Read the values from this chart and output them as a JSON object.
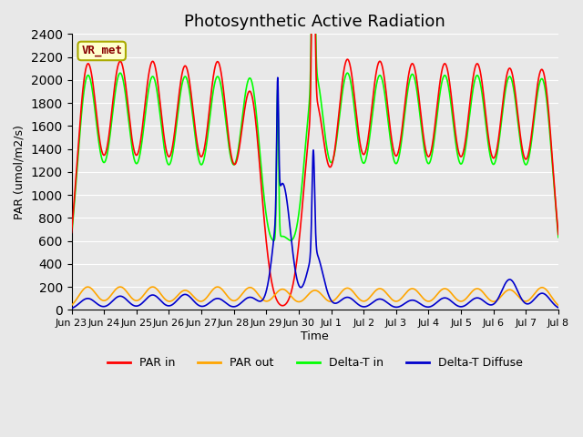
{
  "title": "Photosynthetic Active Radiation",
  "ylabel": "PAR (umol/m2/s)",
  "xlabel": "Time",
  "ylim": [
    0,
    2400
  ],
  "plot_bg_color": "#e8e8e8",
  "annotation_text": "VR_met",
  "annotation_bg": "#ffffcc",
  "annotation_border": "#aaaa00",
  "annotation_text_color": "#880000",
  "legend_items": [
    "PAR in",
    "PAR out",
    "Delta-T in",
    "Delta-T Diffuse"
  ],
  "legend_colors": [
    "#ff0000",
    "#ffa500",
    "#00ff00",
    "#0000cc"
  ],
  "line_colors": {
    "par_in": "#ff0000",
    "par_out": "#ffa500",
    "delta_t_in": "#00ff00",
    "delta_t_diffuse": "#0000cc"
  },
  "tick_labels": [
    "Jun 23",
    "Jun 24",
    "Jun 25",
    "Jun 26",
    "Jun 27",
    "Jun 28",
    "Jun 29",
    "Jun 30",
    "Jul 1",
    "Jul 2",
    "Jul 3",
    "Jul 4",
    "Jul 5",
    "Jul 6",
    "Jul 7",
    "Jul 8"
  ],
  "num_days": 15,
  "grid_color": "#ffffff",
  "title_fontsize": 13,
  "peaks_par_in": [
    2120,
    2120,
    2120,
    2080,
    2120,
    1880,
    0,
    1800,
    2140,
    2120,
    2100,
    2100,
    2100,
    2060,
    2070
  ],
  "peaks_par_out": [
    200,
    200,
    200,
    170,
    200,
    195,
    180,
    170,
    190,
    185,
    185,
    185,
    185,
    175,
    195
  ],
  "peaks_delta_t": [
    2020,
    2020,
    1990,
    1990,
    1990,
    1990,
    600,
    2020,
    2020,
    2000,
    2010,
    2000,
    2000,
    1990,
    1990
  ],
  "peaks_diffuse": [
    100,
    120,
    130,
    135,
    100,
    110,
    1100,
    500,
    110,
    95,
    85,
    105,
    105,
    265,
    145
  ]
}
